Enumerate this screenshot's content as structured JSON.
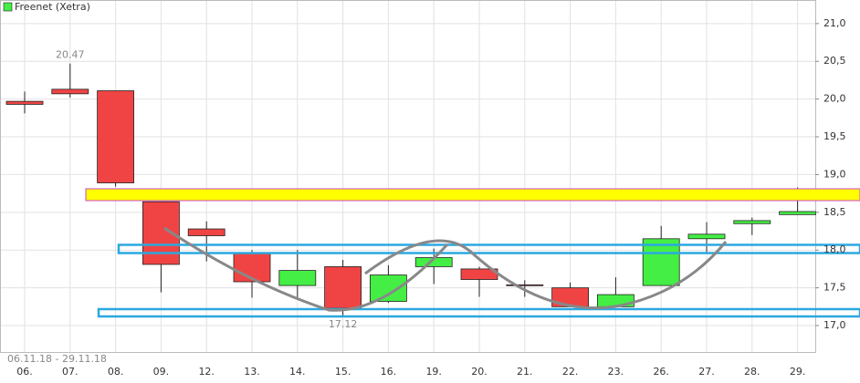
{
  "chart_data": {
    "type": "candlestick",
    "title": "Freenet (Xetra)",
    "date_range": "06.11.18 - 29.11.18",
    "categories": [
      "06.",
      "07.",
      "08.",
      "09.",
      "12.",
      "13.",
      "14.",
      "15.",
      "16.",
      "19.",
      "20.",
      "21.",
      "22.",
      "23.",
      "26.",
      "27.",
      "28.",
      "29."
    ],
    "series": [
      {
        "name": "Freenet (Xetra)",
        "color": "#44ee44",
        "down_color": "#f04444",
        "open": [
          19.97,
          20.13,
          20.11,
          18.64,
          18.28,
          17.96,
          17.53,
          17.78,
          17.32,
          17.78,
          17.75,
          17.54,
          17.5,
          17.25,
          17.53,
          18.15,
          18.35,
          18.47
        ],
        "high": [
          20.1,
          20.47,
          20.11,
          18.64,
          18.38,
          18.0,
          18.0,
          17.87,
          17.8,
          18.02,
          17.78,
          17.6,
          17.57,
          17.64,
          18.32,
          18.37,
          18.43,
          18.83
        ],
        "low": [
          19.81,
          20.02,
          18.84,
          17.44,
          17.85,
          17.37,
          17.37,
          17.12,
          17.3,
          17.55,
          17.38,
          17.38,
          17.25,
          17.25,
          17.53,
          17.95,
          18.2,
          18.47
        ],
        "close": [
          19.93,
          20.07,
          18.89,
          17.81,
          18.19,
          17.58,
          17.73,
          17.23,
          17.67,
          17.9,
          17.61,
          17.53,
          17.25,
          17.41,
          18.15,
          18.21,
          18.39,
          18.51
        ]
      }
    ],
    "annotations": [
      "20.47",
      "17.12"
    ],
    "ylim": [
      16.65,
      21.3
    ],
    "yticks": [
      {
        "value": 17,
        "label": "17,0"
      },
      {
        "value": 17.5,
        "label": "17,5"
      },
      {
        "value": 18,
        "label": "18,0"
      },
      {
        "value": 18.5,
        "label": "18,5"
      },
      {
        "value": 19,
        "label": "19,0"
      },
      {
        "value": 19.5,
        "label": "19,5"
      },
      {
        "value": 20,
        "label": "20,0"
      },
      {
        "value": 20.5,
        "label": "20,5"
      },
      {
        "value": 21,
        "label": "21,0"
      }
    ],
    "grid": true
  }
}
